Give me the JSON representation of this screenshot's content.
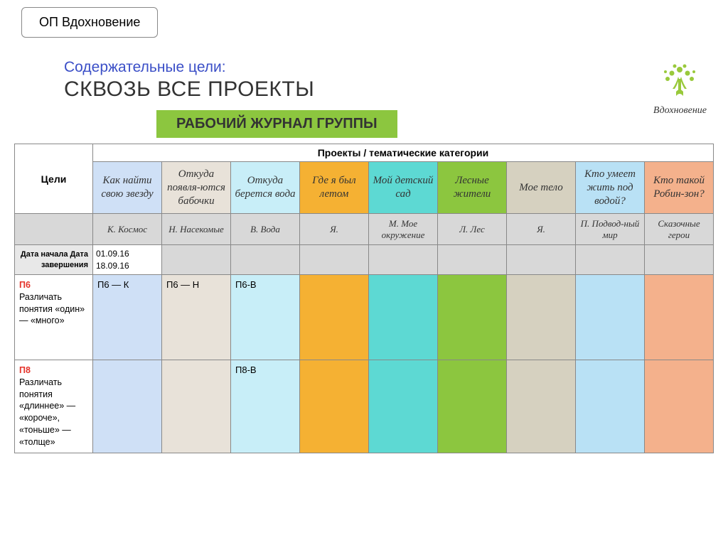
{
  "topLabel": "ОП Вдохновение",
  "subtitle": "Содержательные цели:",
  "mainTitle": "СКВОЗЬ ВСЕ ПРОЕКТЫ",
  "banner": "РАБОЧИЙ ЖУРНАЛ ГРУППЫ",
  "logoText": "Вдохновение",
  "table": {
    "goalsHeader": "Цели",
    "projectsHeader": "Проекты / тематические категории",
    "colors": {
      "c0": "#cfe0f6",
      "c1": "#e8e2d9",
      "c2": "#c8eef8",
      "c3": "#f5b133",
      "c4": "#5dd9d3",
      "c5": "#8cc63f",
      "c6": "#d6d1c0",
      "c7": "#b9e1f5",
      "c8": "#f4b18c",
      "gray": "#d8d8d8"
    },
    "projects": [
      "Как найти свою звезду",
      "Откуда появля-ются бабочки",
      "Откуда берется вода",
      "Где я был летом",
      "Мой детский сад",
      "Лесные жители",
      "Мое тело",
      "Кто умеет жить под водой?",
      "Кто такой Робин-зон?"
    ],
    "subcats": [
      "К. Космос",
      "Н. Насекомые",
      "В. Вода",
      "Я.",
      "М. Мое окружение",
      "Л. Лес",
      "Я.",
      "П. Подвод-ный мир",
      "Сказочные герои"
    ],
    "dateLabel": "Дата начала Дата завершения",
    "dateStart": "01.09.16",
    "dateEnd": "18.09.16",
    "rows": [
      {
        "code": "П6",
        "text": "Различать понятия «один» — «много»",
        "cells": [
          "П6 — К",
          "П6 — Н",
          "П6-В",
          "",
          "",
          "",
          "",
          "",
          ""
        ]
      },
      {
        "code": "П8",
        "text": "Различать понятия «длиннее» — «короче», «тоньше» — «толще»",
        "cells": [
          "",
          "",
          "П8-В",
          "",
          "",
          "",
          "",
          "",
          ""
        ]
      }
    ]
  }
}
